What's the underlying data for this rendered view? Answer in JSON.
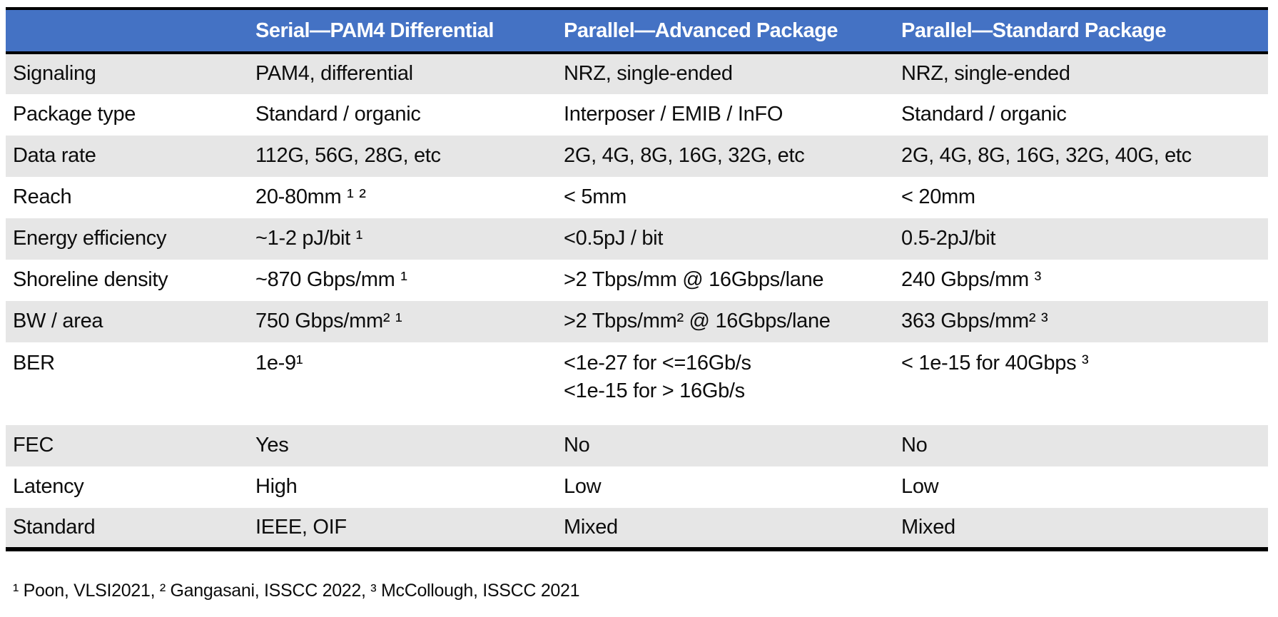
{
  "chart_data": {
    "type": "table",
    "columns": [
      "",
      "Serial—PAM4 Differential",
      "Parallel—Advanced Package",
      "Parallel—Standard Package"
    ],
    "rows": [
      {
        "label": "Signaling",
        "cells": [
          "PAM4, differential",
          "NRZ, single-ended",
          "NRZ, single-ended"
        ]
      },
      {
        "label": "Package type",
        "cells": [
          "Standard / organic",
          "Interposer / EMIB / InFO",
          "Standard / organic"
        ]
      },
      {
        "label": "Data rate",
        "cells": [
          "112G, 56G, 28G, etc",
          "2G, 4G, 8G, 16G, 32G, etc",
          "2G, 4G, 8G, 16G, 32G, 40G, etc"
        ]
      },
      {
        "label": "Reach",
        "cells": [
          "20-80mm ¹ ²",
          "< 5mm",
          "< 20mm"
        ]
      },
      {
        "label": "Energy efficiency",
        "cells": [
          "~1-2 pJ/bit ¹",
          "<0.5pJ / bit",
          "0.5-2pJ/bit"
        ]
      },
      {
        "label": "Shoreline density",
        "cells": [
          "~870 Gbps/mm ¹",
          ">2 Tbps/mm @ 16Gbps/lane",
          "240 Gbps/mm ³"
        ]
      },
      {
        "label": "BW / area",
        "cells": [
          "750 Gbps/mm² ¹",
          ">2 Tbps/mm² @ 16Gbps/lane",
          "363 Gbps/mm² ³"
        ]
      },
      {
        "label": "BER",
        "cells": [
          "1e-9¹",
          "<1e-27 for <=16Gb/s\n<1e-15 for > 16Gb/s",
          "< 1e-15 for 40Gbps ³"
        ]
      },
      {
        "label": "FEC",
        "cells": [
          "Yes",
          "No",
          "No"
        ]
      },
      {
        "label": "Latency",
        "cells": [
          "High",
          "Low",
          "Low"
        ]
      },
      {
        "label": "Standard",
        "cells": [
          "IEEE, OIF",
          "Mixed",
          "Mixed"
        ]
      }
    ],
    "footnote": "¹ Poon, VLSI2021, ² Gangasani, ISSCC 2022, ³ McCollough, ISSCC 2021",
    "layout": {
      "banded_rows": "odd rows shaded starting with first",
      "legend": "none",
      "grid": "horizontal rules only (black above/below header and at bottom)"
    },
    "colors": {
      "header_bg": "#4472C4",
      "header_text": "#FFFFFF",
      "band_bg": "#E6E6E6",
      "row_bg": "#FFFFFF",
      "border": "#000000",
      "body_text": "#0D0D0D"
    }
  }
}
